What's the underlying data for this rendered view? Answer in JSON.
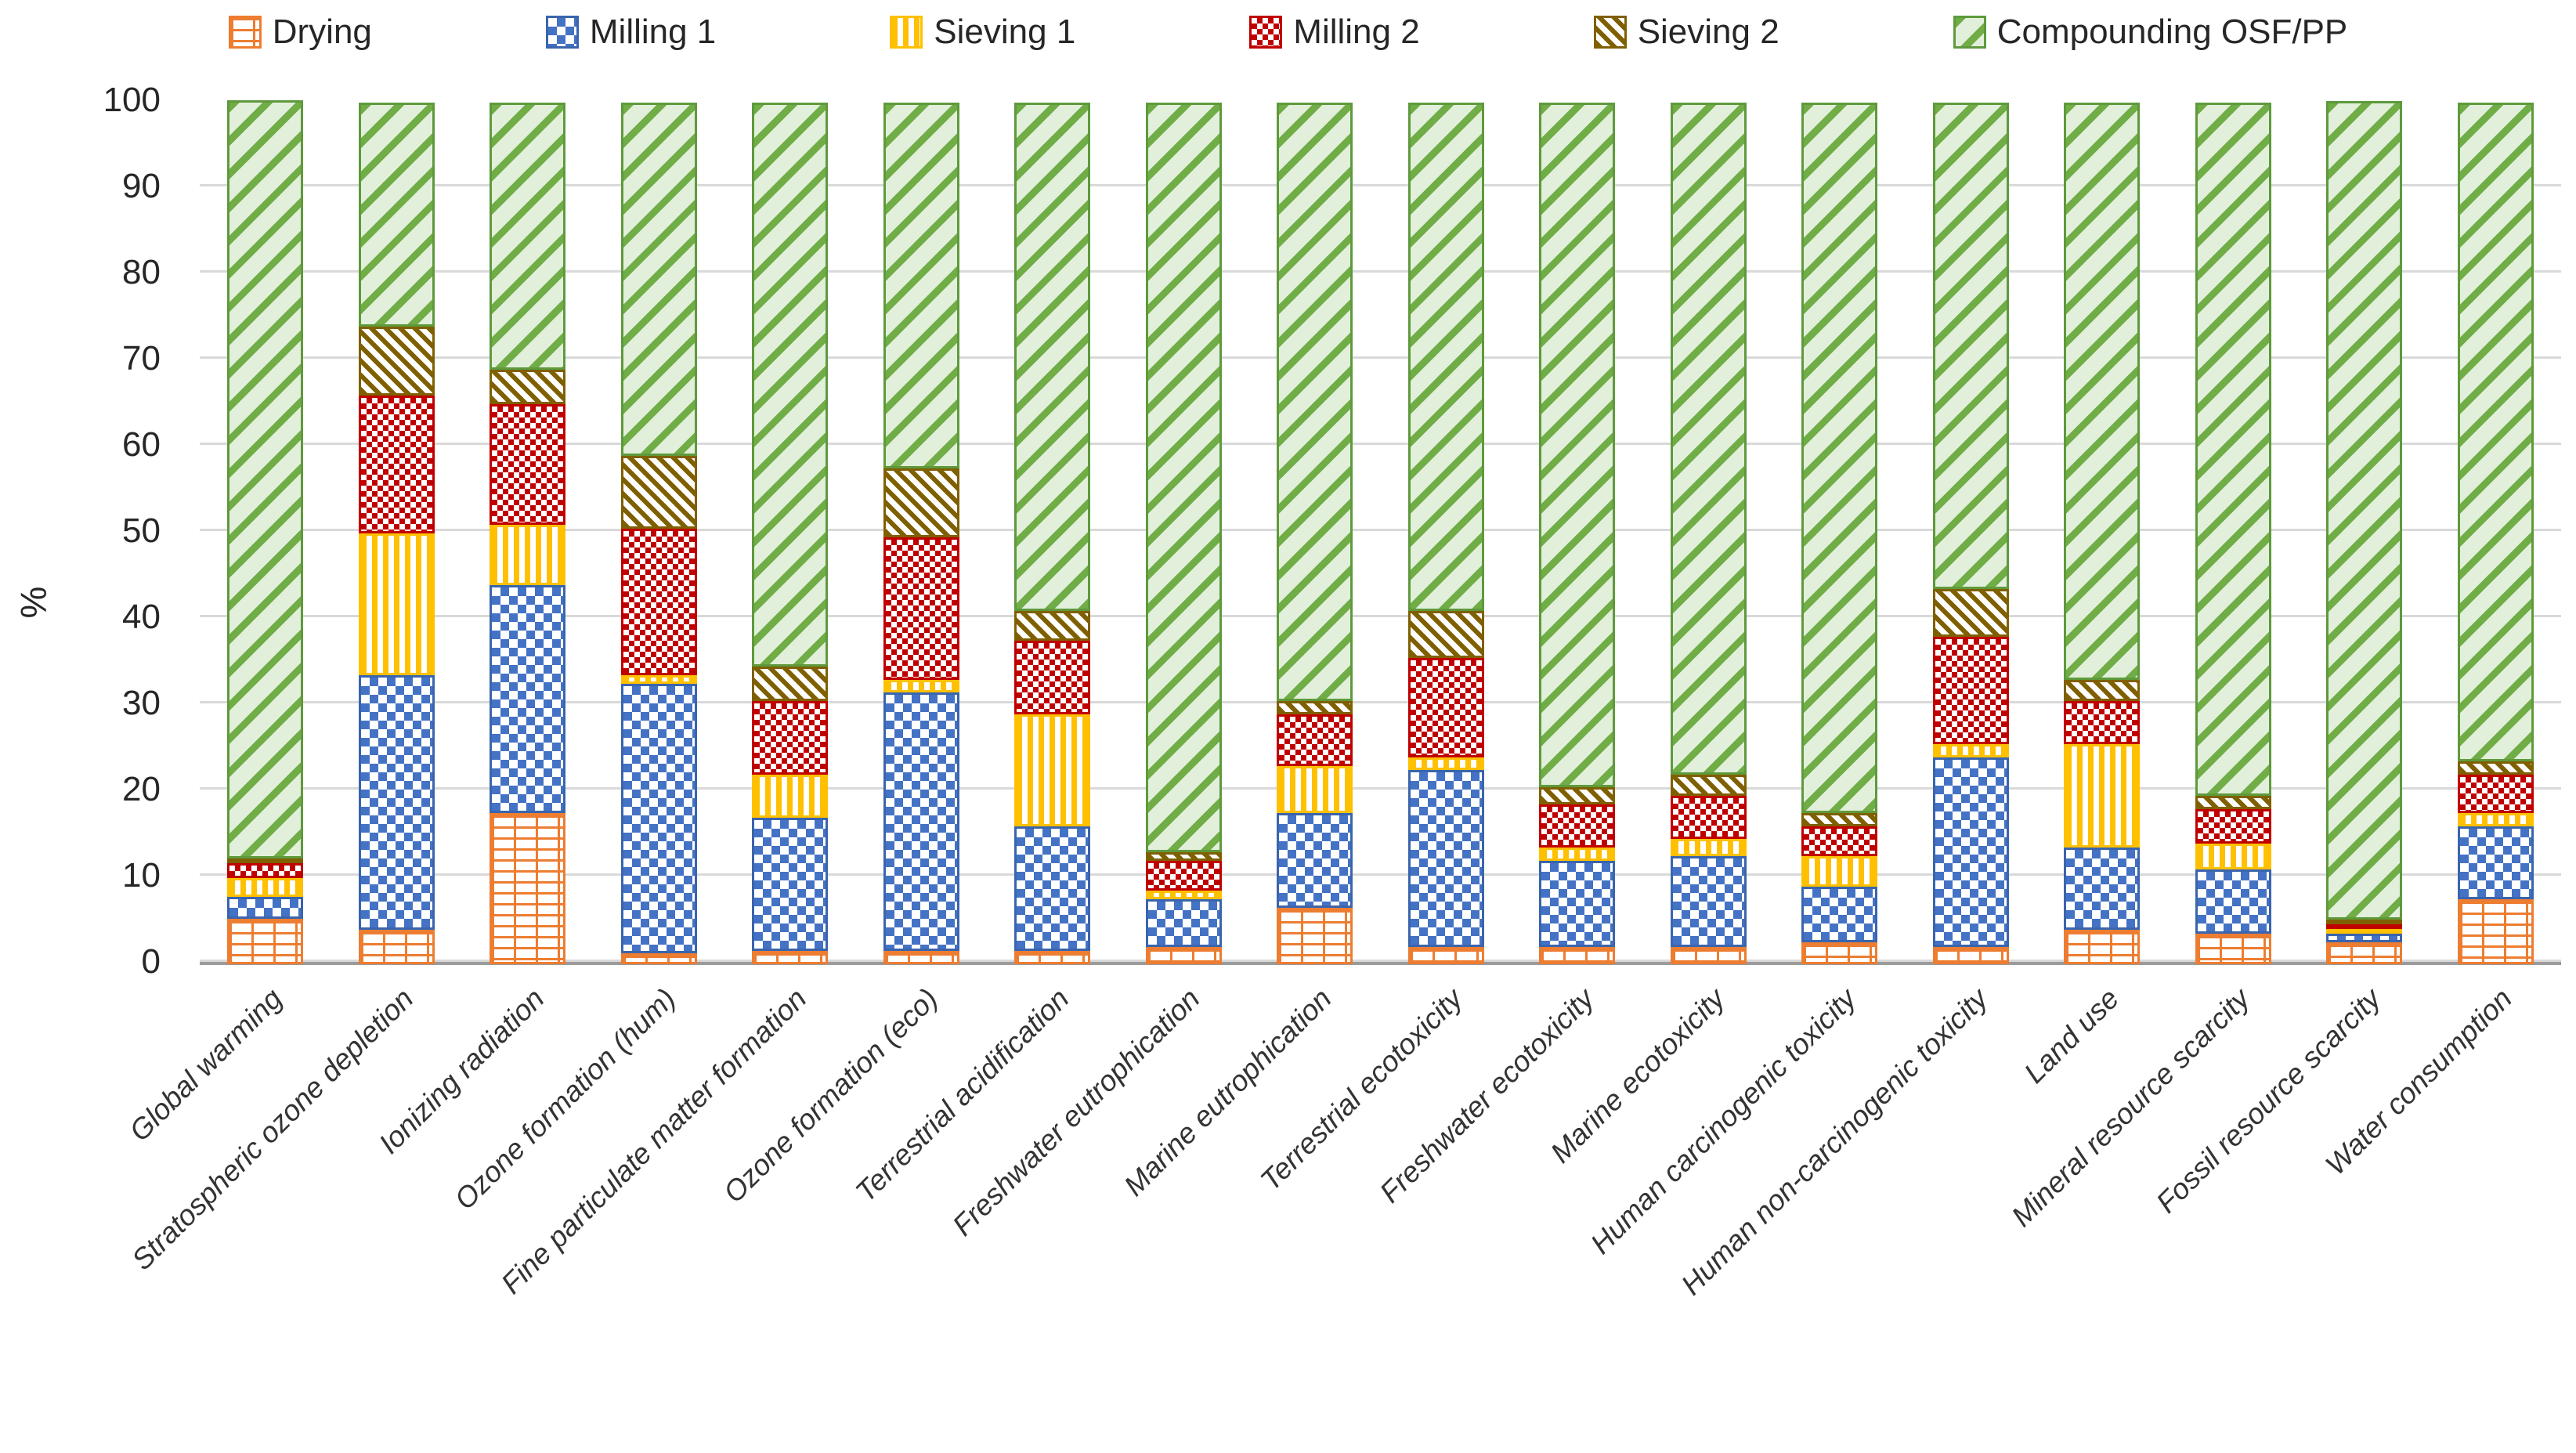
{
  "chart_data": {
    "type": "bar",
    "stacked": true,
    "normalized_percent": true,
    "title": "",
    "xlabel": "",
    "ylabel": "%",
    "ylim": [
      0,
      100
    ],
    "yticks": [
      0,
      10,
      20,
      30,
      40,
      50,
      60,
      70,
      80,
      90,
      100
    ],
    "grid": true,
    "legend_position": "top",
    "categories": [
      "Global warming",
      "Stratospheric ozone depletion",
      "Ionizing radiation",
      "Ozone formation (hum)",
      "Fine particulate matter formation",
      "Ozone formation (eco)",
      "Terrestrial acidification",
      "Freshwater eutrophication",
      "Marine eutrophication",
      "Terrestrial ecotoxicity",
      "Freshwater ecotoxicity",
      "Marine ecotoxicity",
      "Human carcinogenic toxicity",
      "Human non-carcinogenic toxicity",
      "Land use",
      "Mineral resource scarcity",
      "Fossil resource scarcity",
      "Water consumption"
    ],
    "series": [
      {
        "name": "Drying",
        "color": "#ED7D31",
        "pattern": "brick",
        "values": [
          5.2,
          4,
          17.5,
          1.2,
          1.5,
          1.5,
          1.5,
          2,
          6.5,
          2,
          2,
          2,
          2.5,
          2,
          4,
          3.5,
          2.5,
          7.5
        ]
      },
      {
        "name": "Milling 1",
        "color": "#4472C4",
        "pattern": "checker",
        "values": [
          2.6,
          29.5,
          26.5,
          31.3,
          15.5,
          30,
          14.5,
          5.5,
          11,
          20.5,
          10,
          10.5,
          6.5,
          22,
          9.5,
          7.5,
          1,
          8.5
        ]
      },
      {
        "name": "Sieving 1",
        "color": "#FFC000",
        "pattern": "vertical-stripes",
        "values": [
          2.2,
          16.5,
          7,
          1,
          5,
          1.5,
          13,
          1,
          5.5,
          1.5,
          1.5,
          2,
          3.5,
          1.5,
          12,
          3,
          0.5,
          1.5
        ]
      },
      {
        "name": "Milling 2",
        "color": "#C00000",
        "pattern": "dots",
        "values": [
          1.7,
          16,
          14,
          17,
          8.5,
          16.5,
          8.5,
          3.5,
          6,
          11.5,
          5,
          5,
          3.5,
          12.5,
          5,
          4,
          0.5,
          4.5
        ]
      },
      {
        "name": "Sieving 2",
        "color": "#7F6000",
        "pattern": "diagonal-down",
        "values": [
          0.3,
          8,
          4,
          8.5,
          4,
          8,
          3.5,
          1,
          1.5,
          5.5,
          2,
          2.5,
          1.5,
          5.5,
          2.5,
          1.5,
          0.5,
          1.5
        ]
      },
      {
        "name": "Compounding OSF/PP",
        "color": "#70AD47",
        "pattern": "diagonal-up",
        "bg": "#E2EFDA",
        "values": [
          88,
          26,
          31,
          41,
          65.5,
          42.5,
          59,
          87,
          69.5,
          59,
          79.5,
          78,
          82.5,
          56.5,
          67,
          80.5,
          95,
          76.5
        ]
      }
    ],
    "colors": {
      "gridline": "#D9D9D9",
      "axis_line": "#9B9B9B",
      "text": "#262626"
    }
  }
}
